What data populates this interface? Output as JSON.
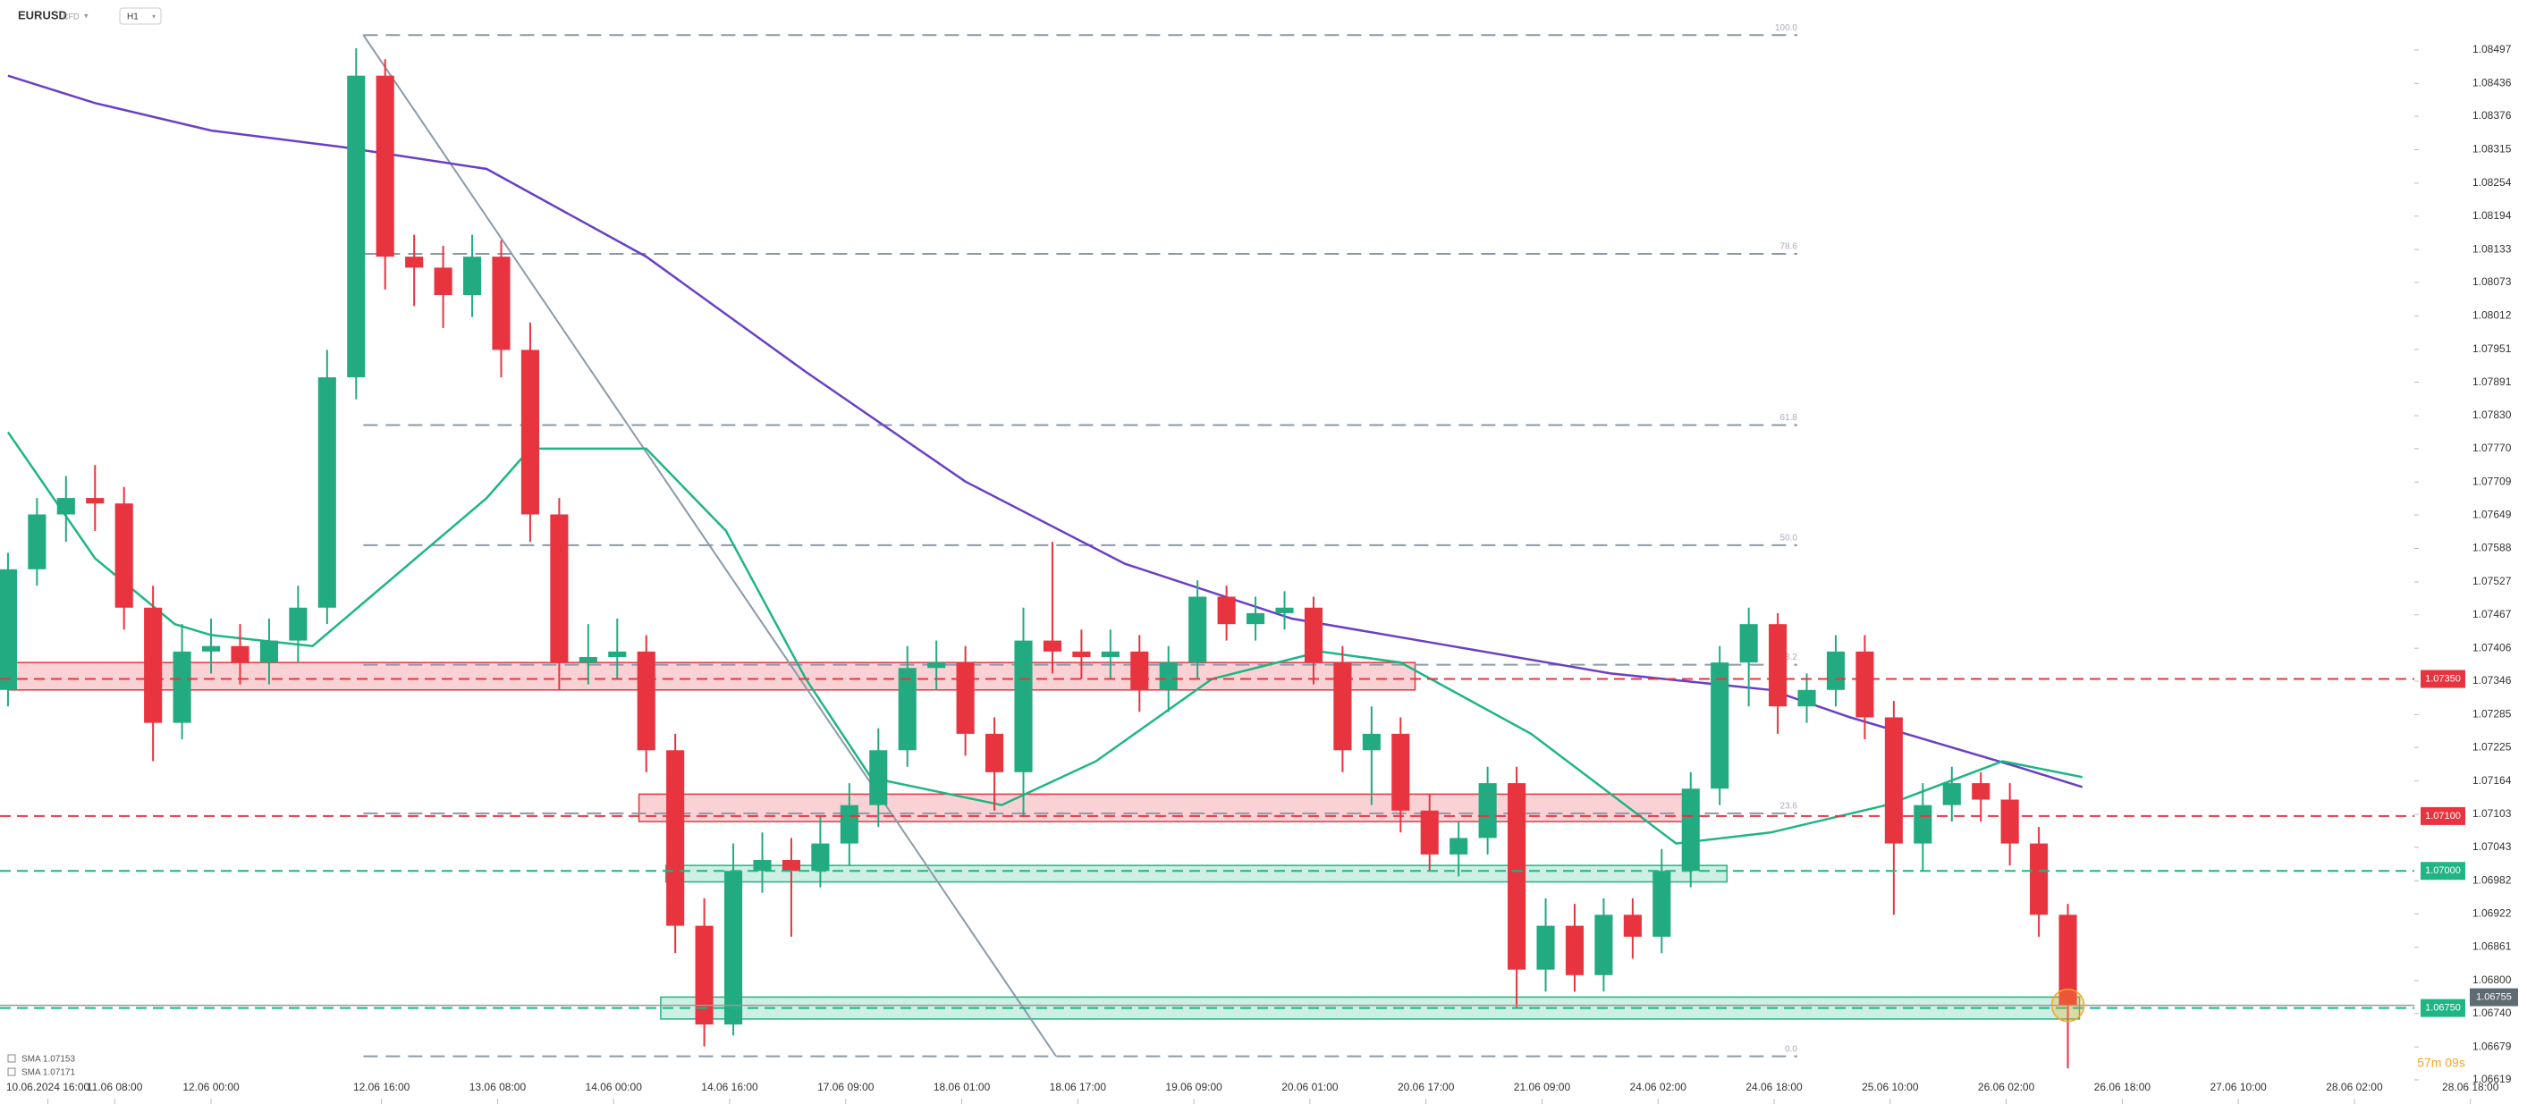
{
  "header": {
    "symbol": "EURUSD",
    "kind": "CFD",
    "timeframe": "H1"
  },
  "chart_data": {
    "type": "candlestick",
    "up_color": "#22ab80",
    "down_color": "#e8343f",
    "xlim": [
      -1.1,
      347.3
    ],
    "ylim": [
      1.06575,
      1.08588
    ],
    "xticks": [
      {
        "value": 5.5,
        "label": "10.06.2024 16:00"
      },
      {
        "value": 14.7,
        "label": "11.06 08:00"
      },
      {
        "value": 28,
        "label": "12.06 00:00"
      },
      {
        "value": 51.5,
        "label": "12.06 16:00"
      },
      {
        "value": 67.5,
        "label": "13.06 08:00"
      },
      {
        "value": 83.5,
        "label": "14.06 00:00"
      },
      {
        "value": 99.5,
        "label": "14.06 16:00"
      },
      {
        "value": 115.5,
        "label": "17.06 09:00"
      },
      {
        "value": 131.5,
        "label": "18.06 01:00"
      },
      {
        "value": 147.5,
        "label": "18.06 17:00"
      },
      {
        "value": 163.5,
        "label": "19.06 09:00"
      },
      {
        "value": 179.5,
        "label": "20.06 01:00"
      },
      {
        "value": 195.5,
        "label": "20.06 17:00"
      },
      {
        "value": 211.5,
        "label": "21.06 09:00"
      },
      {
        "value": 227.5,
        "label": "24.06 02:00"
      },
      {
        "value": 243.5,
        "label": "24.06 18:00"
      },
      {
        "value": 259.5,
        "label": "25.06 10:00"
      },
      {
        "value": 275.5,
        "label": "26.06 02:00"
      },
      {
        "value": 291.5,
        "label": "26.06 18:00"
      },
      {
        "value": 307.5,
        "label": "27.06 10:00"
      },
      {
        "value": 323.5,
        "label": "28.06 02:00"
      },
      {
        "value": 339.5,
        "label": "28.06 18:00"
      }
    ],
    "yticks": [
      1.08497,
      1.08436,
      1.08376,
      1.08315,
      1.08254,
      1.08194,
      1.08133,
      1.08073,
      1.08012,
      1.07951,
      1.07891,
      {
        "value": 1.0783,
        "label": "1.07830"
      },
      {
        "value": 1.0777,
        "label": "1.07770"
      },
      1.07709,
      1.07649,
      1.07588,
      1.07527,
      1.07467,
      1.07406,
      1.07346,
      1.07285,
      1.07225,
      1.07164,
      1.07103,
      1.07043,
      1.06982,
      1.06922,
      1.06861,
      {
        "value": 1.068,
        "label": "1.06800"
      },
      {
        "value": 1.0674,
        "label": "1.06740"
      },
      1.06679,
      1.06619
    ],
    "candles": [
      [
        0,
        1.0733,
        1.0758,
        1.073,
        1.0755
      ],
      [
        4,
        1.0755,
        1.0768,
        1.0752,
        1.0765
      ],
      [
        8,
        1.0765,
        1.0772,
        1.076,
        1.0768
      ],
      [
        12,
        1.0768,
        1.0774,
        1.0762,
        1.0767
      ],
      [
        16,
        1.0767,
        1.077,
        1.0744,
        1.0748
      ],
      [
        20,
        1.0748,
        1.0752,
        1.072,
        1.0727
      ],
      [
        24,
        1.0727,
        1.0745,
        1.0724,
        1.074
      ],
      [
        28,
        1.074,
        1.0746,
        1.0736,
        1.0741
      ],
      [
        32,
        1.0741,
        1.0745,
        1.0734,
        1.0738
      ],
      [
        36,
        1.0738,
        1.0746,
        1.0734,
        1.0742
      ],
      [
        40,
        1.0742,
        1.0752,
        1.0738,
        1.0748
      ],
      [
        44,
        1.0748,
        1.0795,
        1.0745,
        1.079
      ],
      [
        48,
        1.079,
        1.085,
        1.0786,
        1.0845
      ],
      [
        52,
        1.0845,
        1.0848,
        1.0806,
        1.0812
      ],
      [
        56,
        1.0812,
        1.0816,
        1.0803,
        1.081
      ],
      [
        60,
        1.081,
        1.0814,
        1.0799,
        1.0805
      ],
      [
        64,
        1.0805,
        1.0816,
        1.0801,
        1.0812
      ],
      [
        68,
        1.0812,
        1.0815,
        1.079,
        1.0795
      ],
      [
        72,
        1.0795,
        1.08,
        1.076,
        1.0765
      ],
      [
        76,
        1.0765,
        1.0768,
        1.0733,
        1.0738
      ],
      [
        80,
        1.0738,
        1.0745,
        1.0734,
        1.0739
      ],
      [
        84,
        1.0739,
        1.0746,
        1.0735,
        1.074
      ],
      [
        88,
        1.074,
        1.0743,
        1.0718,
        1.0722
      ],
      [
        92,
        1.0722,
        1.0725,
        1.0685,
        1.069
      ],
      [
        96,
        1.069,
        1.0695,
        1.0668,
        1.0672
      ],
      [
        100,
        1.0672,
        1.0705,
        1.067,
        1.07
      ],
      [
        104,
        1.07,
        1.0707,
        1.0696,
        1.0702
      ],
      [
        108,
        1.0702,
        1.0706,
        1.0688,
        1.07
      ],
      [
        112,
        1.07,
        1.071,
        1.0697,
        1.0705
      ],
      [
        116,
        1.0705,
        1.0716,
        1.0701,
        1.0712
      ],
      [
        120,
        1.0712,
        1.0726,
        1.0708,
        1.0722
      ],
      [
        124,
        1.0722,
        1.0741,
        1.0719,
        1.0737
      ],
      [
        128,
        1.0737,
        1.0742,
        1.0733,
        1.0738
      ],
      [
        132,
        1.0738,
        1.0741,
        1.0721,
        1.0725
      ],
      [
        136,
        1.0725,
        1.0728,
        1.0711,
        1.0718
      ],
      [
        140,
        1.0718,
        1.0748,
        1.071,
        1.0742
      ],
      [
        144,
        1.0742,
        1.076,
        1.0736,
        1.074
      ],
      [
        148,
        1.074,
        1.0744,
        1.0735,
        1.0739
      ],
      [
        152,
        1.0739,
        1.0744,
        1.0735,
        1.074
      ],
      [
        156,
        1.074,
        1.0743,
        1.0729,
        1.0733
      ],
      [
        160,
        1.0733,
        1.0741,
        1.0729,
        1.0738
      ],
      [
        164,
        1.0738,
        1.0753,
        1.0735,
        1.075
      ],
      [
        168,
        1.075,
        1.0752,
        1.0742,
        1.0745
      ],
      [
        172,
        1.0745,
        1.075,
        1.0742,
        1.0747
      ],
      [
        176,
        1.0747,
        1.0751,
        1.0744,
        1.0748
      ],
      [
        180,
        1.0748,
        1.075,
        1.0734,
        1.0738
      ],
      [
        184,
        1.0738,
        1.0741,
        1.0718,
        1.0722
      ],
      [
        188,
        1.0722,
        1.073,
        1.0712,
        1.0725
      ],
      [
        192,
        1.0725,
        1.0728,
        1.0707,
        1.0711
      ],
      [
        196,
        1.0711,
        1.0714,
        1.07,
        1.0703
      ],
      [
        200,
        1.0703,
        1.0709,
        1.0699,
        1.0706
      ],
      [
        204,
        1.0706,
        1.0719,
        1.0703,
        1.0716
      ],
      [
        208,
        1.0716,
        1.0719,
        1.0675,
        1.0682
      ],
      [
        212,
        1.0682,
        1.0695,
        1.0678,
        1.069
      ],
      [
        216,
        1.069,
        1.0694,
        1.0678,
        1.0681
      ],
      [
        220,
        1.0681,
        1.0695,
        1.0678,
        1.0692
      ],
      [
        224,
        1.0692,
        1.0695,
        1.0684,
        1.0688
      ],
      [
        228,
        1.0688,
        1.0704,
        1.0685,
        1.07
      ],
      [
        232,
        1.07,
        1.0718,
        1.0697,
        1.0715
      ],
      [
        236,
        1.0715,
        1.0741,
        1.0712,
        1.0738
      ],
      [
        240,
        1.0738,
        1.0748,
        1.073,
        1.0745
      ],
      [
        244,
        1.0745,
        1.0747,
        1.0725,
        1.073
      ],
      [
        248,
        1.073,
        1.0736,
        1.0727,
        1.0733
      ],
      [
        252,
        1.0733,
        1.0743,
        1.073,
        1.074
      ],
      [
        256,
        1.074,
        1.0743,
        1.0724,
        1.0728
      ],
      [
        260,
        1.0728,
        1.0731,
        1.0692,
        1.0705
      ],
      [
        264,
        1.0705,
        1.0716,
        1.07,
        1.0712
      ],
      [
        268,
        1.0712,
        1.0719,
        1.0709,
        1.0716
      ],
      [
        272,
        1.0716,
        1.0718,
        1.0709,
        1.0713
      ],
      [
        276,
        1.0713,
        1.0716,
        1.0701,
        1.0705
      ],
      [
        280,
        1.0705,
        1.0708,
        1.0688,
        1.0692
      ],
      [
        284,
        1.0692,
        1.0694,
        1.0664,
        1.06755
      ]
    ],
    "series": [
      {
        "name": "SMA 1.07153",
        "color": "#6a3fc8",
        "x": [
          0,
          12,
          28,
          46,
          66,
          88,
          110,
          132,
          154,
          177,
          199,
          221,
          243,
          254,
          277,
          286
        ],
        "values": [
          1.0845,
          1.084,
          1.0835,
          1.0832,
          1.0828,
          1.0812,
          1.0791,
          1.0771,
          1.0756,
          1.0746,
          1.0741,
          1.0736,
          1.0733,
          1.0728,
          1.0719,
          1.07153
        ]
      },
      {
        "name": "SMA 1.07171",
        "color": "#1fb584",
        "x": [
          0,
          12,
          23,
          28,
          42,
          50,
          66,
          72,
          88,
          99,
          110,
          119,
          137,
          150,
          166,
          181,
          192,
          210,
          230,
          243,
          259,
          275,
          286
        ],
        "values": [
          1.078,
          1.0757,
          1.0745,
          1.0743,
          1.0741,
          1.075,
          1.0768,
          1.0777,
          1.0777,
          1.0762,
          1.0735,
          1.0717,
          1.0712,
          1.072,
          1.0735,
          1.074,
          1.0738,
          1.0725,
          1.0705,
          1.0707,
          1.0712,
          1.072,
          1.07171
        ]
      }
    ],
    "fibonacci": {
      "x": [
        49,
        246.7
      ],
      "levels": [
        {
          "label": "100.0",
          "price": 1.08524
        },
        {
          "label": "78.6",
          "price": 1.08125
        },
        {
          "label": "61.8",
          "price": 1.07813
        },
        {
          "label": "50.0",
          "price": 1.07594
        },
        {
          "label": "38.2",
          "price": 1.07376
        },
        {
          "label": "23.6",
          "price": 1.07105
        },
        {
          "label": "0.0",
          "price": 1.06662
        }
      ]
    },
    "trendline": {
      "x": [
        49,
        144.5
      ],
      "values": [
        1.08524,
        1.06662
      ]
    },
    "zones": [
      {
        "x": [
          0,
          194
        ],
        "values": [
          1.0733,
          1.0738
        ],
        "color": "#e8343f"
      },
      {
        "x": [
          87,
          232
        ],
        "values": [
          1.0709,
          1.0714
        ],
        "color": "#e8343f"
      },
      {
        "x": [
          90.7,
          237
        ],
        "values": [
          1.0698,
          1.0701
        ],
        "color": "#1fb584"
      },
      {
        "x": [
          90,
          285.6
        ],
        "values": [
          1.0673,
          1.0677
        ],
        "color": "#1fb584"
      }
    ],
    "levels": [
      {
        "value": 1.0735,
        "label": "1.07350",
        "color": "#e8343f"
      },
      {
        "value": 1.071,
        "label": "1.07100",
        "color": "#e8343f"
      },
      {
        "value": 1.07,
        "label": "1.07000",
        "color": "#1fb584"
      },
      {
        "value": 1.0675,
        "label": "1.06750",
        "color": "#1fb584"
      }
    ],
    "last_price": {
      "value": 1.06755,
      "label": "1.06755"
    },
    "countdown": "57m 09s"
  }
}
